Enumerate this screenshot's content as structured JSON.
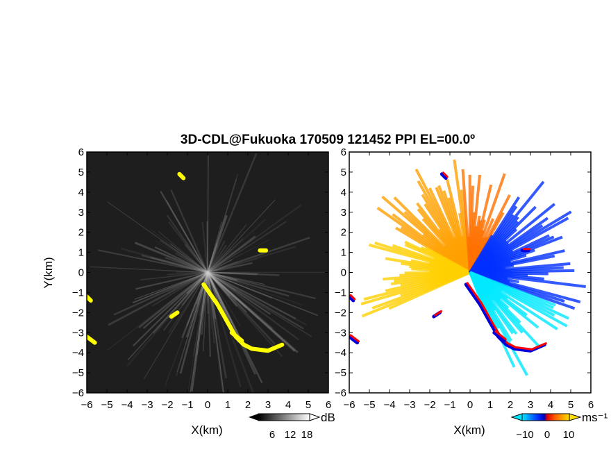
{
  "chart_data": [
    {
      "type": "heatmap",
      "panel": "reflectivity",
      "title": "3D-CDL@Fukuoka 170509 121452 PPI EL=00.0º",
      "xlabel": "X(km)",
      "ylabel": "Y(km)",
      "xlim": [
        -6,
        6
      ],
      "ylim": [
        -6,
        6
      ],
      "xticks": [
        "−6",
        "−5",
        "−4",
        "−3",
        "−2",
        "−1",
        "0",
        "1",
        "2",
        "3",
        "4",
        "5",
        "6"
      ],
      "yticks": [
        "−6",
        "−5",
        "−4",
        "−3",
        "−2",
        "−1",
        "0",
        "1",
        "2",
        "3",
        "4",
        "5",
        "6"
      ],
      "colorbar": {
        "label": "dB",
        "ticks": [
          "6",
          "12",
          "18"
        ],
        "range": [
          0,
          22
        ]
      },
      "colors": {
        "background": "#1e1e1e",
        "echo": "#cfcfcf",
        "clutter": "#ffff00"
      },
      "clutter_regions_km": [
        [
          [
            -0.2,
            -0.6
          ],
          [
            0.5,
            -1.6
          ],
          [
            1.0,
            -2.5
          ],
          [
            1.4,
            -3.2
          ],
          [
            1.8,
            -3.6
          ],
          [
            2.2,
            -3.8
          ],
          [
            3.0,
            -3.9
          ],
          [
            3.7,
            -3.6
          ]
        ],
        [
          [
            -6.0,
            -1.2
          ],
          [
            -5.8,
            -1.4
          ]
        ],
        [
          [
            -6.0,
            -3.2
          ],
          [
            -5.6,
            -3.5
          ]
        ],
        [
          [
            1.2,
            -3.0
          ],
          [
            1.7,
            -3.4
          ]
        ],
        [
          [
            -1.8,
            -2.2
          ],
          [
            -1.5,
            -2.0
          ]
        ],
        [
          [
            2.6,
            1.1
          ],
          [
            2.9,
            1.1
          ]
        ],
        [
          [
            -1.4,
            4.9
          ],
          [
            -1.2,
            4.7
          ]
        ]
      ]
    },
    {
      "type": "heatmap",
      "panel": "doppler-velocity",
      "xlabel": "X(km)",
      "xlim": [
        -6,
        6
      ],
      "ylim": [
        -6,
        6
      ],
      "xticks": [
        "−6",
        "−5",
        "−4",
        "−3",
        "−2",
        "−1",
        "0",
        "1",
        "2",
        "3",
        "4",
        "5",
        "6"
      ],
      "yticks": [
        "−6",
        "−5",
        "−4",
        "−3",
        "−2",
        "−1",
        "0",
        "1",
        "2",
        "3",
        "4",
        "5",
        "6"
      ],
      "colorbar": {
        "label": "ms⁻¹",
        "ticks": [
          "−10",
          "0",
          "10"
        ],
        "range": [
          -15,
          15
        ]
      },
      "colors": {
        "positive_far": "#ffd000",
        "positive_near": "#ff7000",
        "negative_near": "#0030ff",
        "negative_far": "#00e8ff",
        "folding_red": "#ff0000",
        "folding_blue": "#0000dd"
      },
      "sectors": [
        {
          "from_deg": 95,
          "to_deg": 150,
          "velocity": 8
        },
        {
          "from_deg": 150,
          "to_deg": 205,
          "velocity": 10
        },
        {
          "from_deg": 60,
          "to_deg": 95,
          "velocity": 3
        },
        {
          "from_deg": -20,
          "to_deg": 60,
          "velocity": -6
        },
        {
          "from_deg": -70,
          "to_deg": -20,
          "velocity": -11
        }
      ]
    }
  ]
}
